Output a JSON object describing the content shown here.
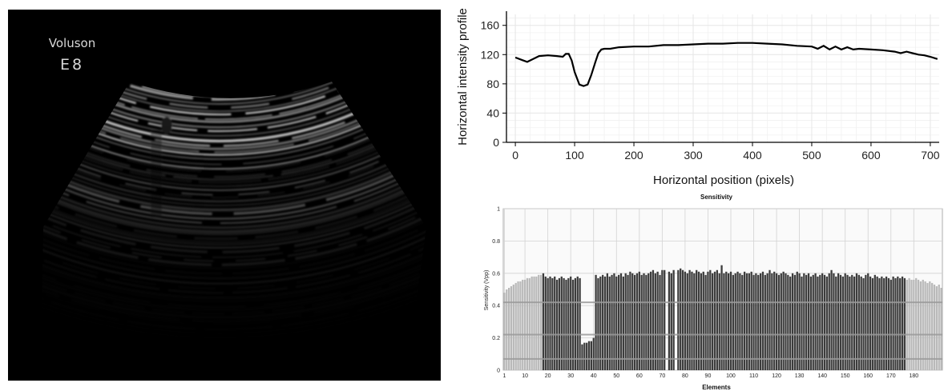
{
  "ultrasound": {
    "brand_line1": "Voluson",
    "brand_line2": "E8"
  },
  "chart_data": [
    {
      "type": "line",
      "title": "",
      "xlabel": "Horizontal position (pixels)",
      "ylabel": "Horizontal intensity profile",
      "xlim": [
        -15,
        715
      ],
      "ylim": [
        0,
        175
      ],
      "xticks": [
        0,
        100,
        200,
        300,
        400,
        500,
        600,
        700
      ],
      "yticks": [
        0,
        40,
        80,
        120,
        160
      ],
      "grid": true,
      "series": [
        {
          "color": "#000000",
          "x": [
            0,
            10,
            20,
            30,
            40,
            55,
            70,
            80,
            85,
            90,
            95,
            100,
            108,
            115,
            122,
            128,
            135,
            140,
            145,
            150,
            160,
            175,
            200,
            225,
            250,
            275,
            300,
            325,
            350,
            375,
            400,
            425,
            450,
            475,
            500,
            510,
            520,
            530,
            540,
            550,
            560,
            570,
            580,
            600,
            620,
            640,
            650,
            660,
            670,
            680,
            690,
            700,
            712
          ],
          "y": [
            116,
            113,
            110,
            114,
            118,
            119,
            118,
            117,
            121,
            121,
            112,
            96,
            79,
            77,
            79,
            92,
            110,
            122,
            127,
            128,
            128,
            130,
            131,
            131,
            133,
            133,
            134,
            135,
            135,
            136,
            136,
            135,
            134,
            132,
            131,
            128,
            132,
            127,
            131,
            127,
            130,
            127,
            128,
            127,
            126,
            124,
            122,
            124,
            122,
            120,
            119,
            117,
            114
          ]
        }
      ]
    },
    {
      "type": "bar",
      "title": "Sensitivity",
      "xlabel": "Elements",
      "ylabel": "Sensitivity (Vpp)",
      "ylim": [
        0,
        1
      ],
      "yticks": [
        0,
        0.2,
        0.4,
        0.6,
        0.8,
        1
      ],
      "xticks": [
        1,
        10,
        20,
        30,
        40,
        50,
        60,
        70,
        80,
        90,
        100,
        110,
        120,
        130,
        140,
        150,
        160,
        170,
        180
      ],
      "grid": true,
      "reference_lines": [
        0.07,
        0.22,
        0.42
      ],
      "colors": {
        "active": "#3c3c3c",
        "edge": "#b9b9b9",
        "reference": "#9a9a9a"
      },
      "categories": [
        1,
        2,
        3,
        4,
        5,
        6,
        7,
        8,
        9,
        10,
        11,
        12,
        13,
        14,
        15,
        16,
        17,
        18,
        19,
        20,
        21,
        22,
        23,
        24,
        25,
        26,
        27,
        28,
        29,
        30,
        31,
        32,
        33,
        34,
        35,
        36,
        37,
        38,
        39,
        40,
        41,
        42,
        43,
        44,
        45,
        46,
        47,
        48,
        49,
        50,
        51,
        52,
        53,
        54,
        55,
        56,
        57,
        58,
        59,
        60,
        61,
        62,
        63,
        64,
        65,
        66,
        67,
        68,
        69,
        70,
        71,
        72,
        73,
        74,
        75,
        76,
        77,
        78,
        79,
        80,
        81,
        82,
        83,
        84,
        85,
        86,
        87,
        88,
        89,
        90,
        91,
        92,
        93,
        94,
        95,
        96,
        97,
        98,
        99,
        100,
        101,
        102,
        103,
        104,
        105,
        106,
        107,
        108,
        109,
        110,
        111,
        112,
        113,
        114,
        115,
        116,
        117,
        118,
        119,
        120,
        121,
        122,
        123,
        124,
        125,
        126,
        127,
        128,
        129,
        130,
        131,
        132,
        133,
        134,
        135,
        136,
        137,
        138,
        139,
        140,
        141,
        142,
        143,
        144,
        145,
        146,
        147,
        148,
        149,
        150,
        151,
        152,
        153,
        154,
        155,
        156,
        157,
        158,
        159,
        160,
        161,
        162,
        163,
        164,
        165,
        166,
        167,
        168,
        169,
        170,
        171,
        172,
        173,
        174,
        175,
        176,
        177,
        178,
        179,
        180,
        181,
        182,
        183,
        184,
        185,
        186,
        187,
        188,
        189,
        190,
        191,
        192
      ],
      "values": [
        0.48,
        0.5,
        0.51,
        0.52,
        0.53,
        0.54,
        0.55,
        0.55,
        0.56,
        0.56,
        0.57,
        0.57,
        0.58,
        0.58,
        0.58,
        0.59,
        0.59,
        0.6,
        0.58,
        0.57,
        0.58,
        0.57,
        0.58,
        0.56,
        0.57,
        0.58,
        0.57,
        0.56,
        0.57,
        0.58,
        0.56,
        0.57,
        0.58,
        0.57,
        0.16,
        0.17,
        0.17,
        0.18,
        0.18,
        0.2,
        0.59,
        0.57,
        0.58,
        0.59,
        0.58,
        0.6,
        0.58,
        0.59,
        0.6,
        0.58,
        0.59,
        0.6,
        0.58,
        0.6,
        0.59,
        0.61,
        0.6,
        0.59,
        0.6,
        0.61,
        0.59,
        0.6,
        0.59,
        0.6,
        0.61,
        0.62,
        0.6,
        0.61,
        0.59,
        0.62,
        0.62,
        0,
        0.61,
        0.6,
        0.62,
        0,
        0.62,
        0.63,
        0.62,
        0.61,
        0.6,
        0.62,
        0.61,
        0.6,
        0.62,
        0.61,
        0.6,
        0.61,
        0.59,
        0.61,
        0.62,
        0.6,
        0.61,
        0.62,
        0.6,
        0.65,
        0.6,
        0.61,
        0.6,
        0.61,
        0.59,
        0.6,
        0.61,
        0.6,
        0.59,
        0.61,
        0.6,
        0.6,
        0.61,
        0.59,
        0.6,
        0.59,
        0.6,
        0.61,
        0.59,
        0.6,
        0.62,
        0.6,
        0.61,
        0.6,
        0.59,
        0.6,
        0.61,
        0.6,
        0.59,
        0.58,
        0.6,
        0.59,
        0.61,
        0.6,
        0.58,
        0.6,
        0.59,
        0.6,
        0.58,
        0.59,
        0.6,
        0.58,
        0.59,
        0.6,
        0.59,
        0.58,
        0.6,
        0.62,
        0.6,
        0.58,
        0.6,
        0.59,
        0.58,
        0.6,
        0.59,
        0.58,
        0.59,
        0.58,
        0.6,
        0.59,
        0.58,
        0.57,
        0.59,
        0.6,
        0.58,
        0.57,
        0.59,
        0.58,
        0.57,
        0.58,
        0.57,
        0.58,
        0.57,
        0.56,
        0.58,
        0.57,
        0.58,
        0.57,
        0.58,
        0.57,
        0.56,
        0.57,
        0.56,
        0.56,
        0.57,
        0.56,
        0.55,
        0.56,
        0.55,
        0.54,
        0.55,
        0.54,
        0.53,
        0.52,
        0.53,
        0.51
      ]
    }
  ]
}
